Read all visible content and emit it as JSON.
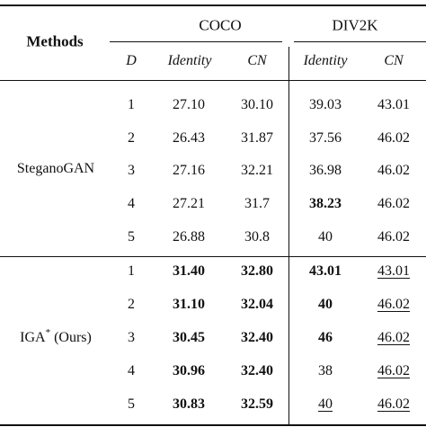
{
  "header": {
    "methods": "Methods",
    "datasets": [
      "COCO",
      "DIV2K"
    ],
    "subheaders": [
      "D",
      "Identity",
      "CN",
      "Identity",
      "CN"
    ]
  },
  "groups": [
    {
      "method": "SteganoGAN",
      "method_sup": "",
      "method_suffix": "",
      "rows": [
        {
          "d": "1",
          "coco_identity": "27.10",
          "coco_cn": "30.10",
          "div_identity": "39.03",
          "div_cn": "43.01"
        },
        {
          "d": "2",
          "coco_identity": "26.43",
          "coco_cn": "31.87",
          "div_identity": "37.56",
          "div_cn": "46.02"
        },
        {
          "d": "3",
          "coco_identity": "27.16",
          "coco_cn": "32.21",
          "div_identity": "36.98",
          "div_cn": "46.02"
        },
        {
          "d": "4",
          "coco_identity": "27.21",
          "coco_cn": "31.7",
          "div_identity": "38.23",
          "div_cn": "46.02"
        },
        {
          "d": "5",
          "coco_identity": "26.88",
          "coco_cn": "30.8",
          "div_identity": "40",
          "div_cn": "46.02"
        }
      ]
    },
    {
      "method": "IGA",
      "method_sup": "*",
      "method_suffix": "(Ours)",
      "rows": [
        {
          "d": "1",
          "coco_identity": "31.40",
          "coco_cn": "32.80",
          "div_identity": "43.01",
          "div_cn": "43.01"
        },
        {
          "d": "2",
          "coco_identity": "31.10",
          "coco_cn": "32.04",
          "div_identity": "40",
          "div_cn": "46.02"
        },
        {
          "d": "3",
          "coco_identity": "30.45",
          "coco_cn": "32.40",
          "div_identity": "46",
          "div_cn": "46.02"
        },
        {
          "d": "4",
          "coco_identity": "30.96",
          "coco_cn": "32.40",
          "div_identity": "38",
          "div_cn": "46.02"
        },
        {
          "d": "5",
          "coco_identity": "30.83",
          "coco_cn": "32.59",
          "div_identity": "40",
          "div_cn": "46.02"
        }
      ]
    }
  ]
}
